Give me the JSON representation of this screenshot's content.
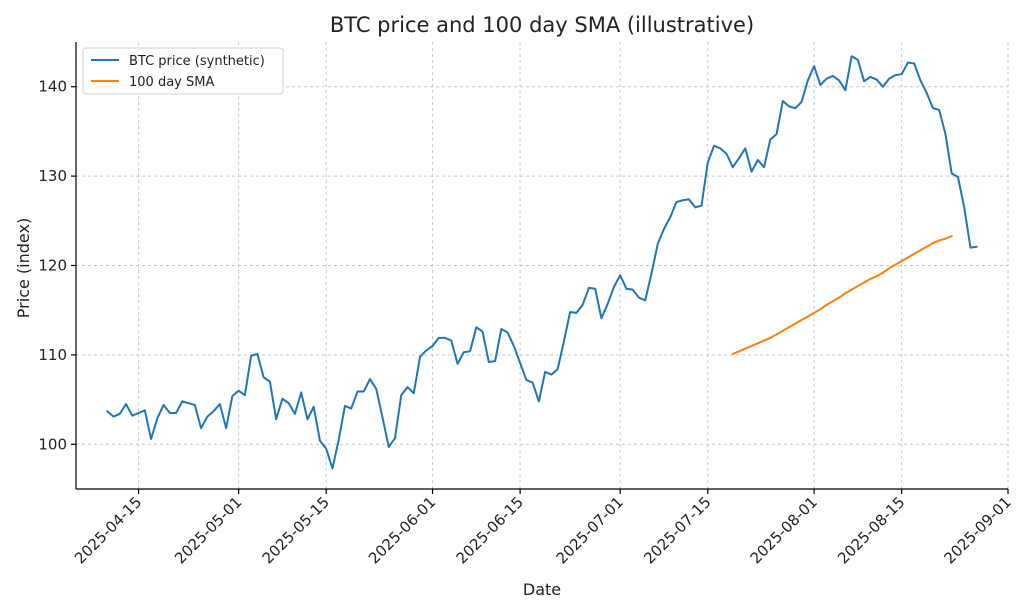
{
  "chart_data": {
    "type": "line",
    "title": "BTC price and 100 day SMA (illustrative)",
    "xlabel": "Date",
    "ylabel": "Price (index)",
    "x_start": "2025-04-10",
    "x_end": "2025-08-27",
    "xlim": [
      "2025-04-05",
      "2025-09-01"
    ],
    "ylim": [
      95,
      145
    ],
    "yticks": [
      100,
      110,
      120,
      130,
      140
    ],
    "xticks": [
      "2025-04-15",
      "2025-05-01",
      "2025-05-15",
      "2025-06-01",
      "2025-06-15",
      "2025-07-01",
      "2025-07-15",
      "2025-08-01",
      "2025-08-15",
      "2025-09-01"
    ],
    "grid": true,
    "legend_position": "top-left",
    "series": [
      {
        "name": "BTC price (synthetic)",
        "color": "#1f77b4",
        "start": "2025-04-10",
        "values": [
          103.7,
          103.1,
          103.4,
          104.5,
          103.2,
          103.5,
          103.8,
          100.6,
          102.9,
          104.4,
          103.5,
          103.5,
          104.8,
          104.6,
          104.4,
          101.8,
          103.1,
          103.7,
          104.5,
          101.8,
          105.4,
          106.0,
          105.5,
          109.9,
          110.1,
          107.5,
          107.0,
          102.8,
          105.1,
          104.6,
          103.4,
          105.8,
          102.8,
          104.2,
          100.4,
          99.5,
          97.3,
          100.5,
          104.3,
          104.0,
          105.9,
          105.9,
          107.3,
          106.2,
          103.0,
          99.7,
          100.7,
          105.5,
          106.4,
          105.7,
          109.8,
          110.5,
          111.0,
          111.9,
          111.9,
          111.6,
          109.0,
          110.3,
          110.4,
          113.1,
          112.6,
          109.2,
          109.3,
          112.9,
          112.5,
          111.0,
          109.1,
          107.2,
          106.9,
          104.8,
          108.1,
          107.8,
          108.4,
          111.5,
          114.8,
          114.7,
          115.6,
          117.5,
          117.4,
          114.1,
          115.7,
          117.6,
          118.9,
          117.4,
          117.3,
          116.4,
          116.1,
          119.1,
          122.4,
          124.1,
          125.4,
          127.1,
          127.3,
          127.4,
          126.5,
          126.7,
          131.5,
          133.4,
          133.1,
          132.5,
          131.0,
          132.0,
          133.1,
          130.5,
          131.8,
          131.0,
          134.1,
          134.7,
          138.4,
          137.8,
          137.6,
          138.3,
          140.7,
          142.3,
          140.2,
          140.9,
          141.2,
          140.7,
          139.6,
          143.4,
          143.0,
          140.6,
          141.1,
          140.8,
          140.0,
          140.9,
          141.3,
          141.4,
          142.7,
          142.6,
          140.7,
          139.3,
          137.6,
          137.4,
          134.7,
          130.3,
          129.9,
          126.5,
          122.0,
          122.1
        ]
      },
      {
        "name": "100 day SMA",
        "color": "#ff7f0e",
        "start": "2025-07-19",
        "values": [
          110.1,
          110.4,
          110.7,
          111.0,
          111.3,
          111.6,
          111.9,
          112.3,
          112.7,
          113.1,
          113.5,
          113.9,
          114.3,
          114.7,
          115.1,
          115.6,
          116.0,
          116.4,
          116.9,
          117.3,
          117.7,
          118.1,
          118.5,
          118.8,
          119.2,
          119.7,
          120.1,
          120.5,
          120.9,
          121.3,
          121.7,
          122.1,
          122.5,
          122.8,
          123.0,
          123.3
        ]
      }
    ]
  }
}
